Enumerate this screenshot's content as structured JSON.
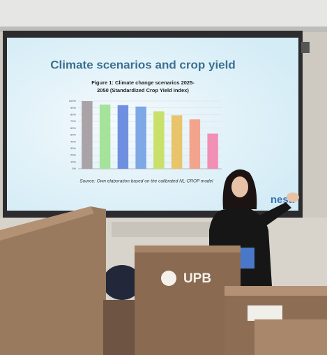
{
  "slide": {
    "title": "Climate scenarios and crop yield",
    "source": "Source: Own elaboration based on the calibrated NL-CROP model",
    "corner_logo": "nesa"
  },
  "podium": {
    "logo": "UPB"
  },
  "chart_data": {
    "type": "bar",
    "title": [
      "Figure 1: Climate change scenarios 2025-",
      "2050 (Standardized Crop Yield Index)"
    ],
    "categories": [
      null,
      null,
      null,
      null,
      null,
      null,
      null,
      null
    ],
    "values": [
      100,
      95,
      94,
      92,
      85,
      79,
      73,
      52
    ],
    "colors": [
      "#a9a3a8",
      "#a6e39a",
      "#6f8fe0",
      "#7ea7e6",
      "#c9e06a",
      "#e8c46a",
      "#f2a48c",
      "#f28fb4"
    ],
    "ylim": [
      0,
      100
    ],
    "yticks": [
      {
        "value": 0,
        "label": "0%"
      },
      {
        "value": 10,
        "label": "10%"
      },
      {
        "value": 20,
        "label": "20%"
      },
      {
        "value": 30,
        "label": "30%"
      },
      {
        "value": 40,
        "label": "40%"
      },
      {
        "value": 50,
        "label": "50%"
      },
      {
        "value": 60,
        "label": "60%"
      },
      {
        "value": 70,
        "label": "70%"
      },
      {
        "value": 80,
        "label": "80%"
      },
      {
        "value": 90,
        "label": "90%"
      },
      {
        "value": 100,
        "label": "100%"
      }
    ],
    "grid": true
  }
}
